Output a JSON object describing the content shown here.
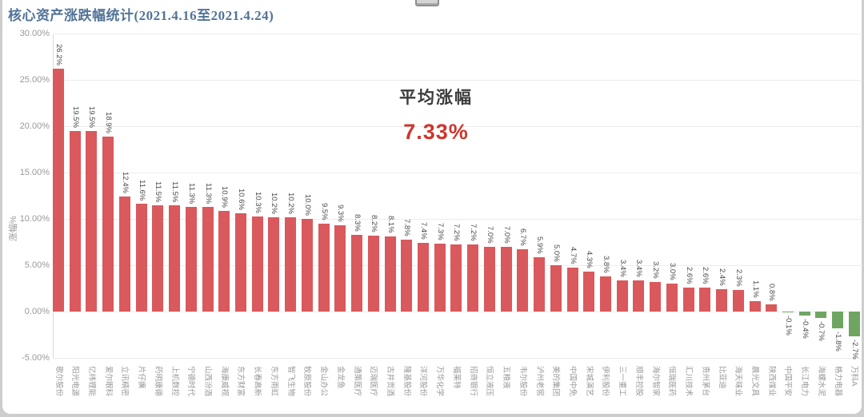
{
  "header": {
    "title": "核心资产涨跌幅统计(2021.4.16至2021.4.24)"
  },
  "toolbar": {
    "top_button_icon": "clipped-gray-button-icon"
  },
  "annotation": {
    "label": "平均涨幅",
    "value": "7.33%"
  },
  "colors": {
    "positive_bar": "#d9595c",
    "negative_bar": "#6ea661",
    "title": "#527398",
    "annotation_value": "#ce352c",
    "tick_text": "#999999"
  },
  "chart_data": {
    "type": "bar",
    "title": "核心资产涨跌幅统计(2021.4.16至2021.4.24)",
    "xlabel": "",
    "ylabel": "涨幅%",
    "ylim": [
      -5,
      30
    ],
    "grid": true,
    "legend": "none",
    "value_unit": "%",
    "annotation": {
      "label": "平均涨幅",
      "value": "7.33%"
    },
    "yticks": [
      {
        "label": "30.00%",
        "value": 30
      },
      {
        "label": "25.00%",
        "value": 25
      },
      {
        "label": "20.00%",
        "value": 20
      },
      {
        "label": "15.00%",
        "value": 15
      },
      {
        "label": "10.00%",
        "value": 10
      },
      {
        "label": "5.00%",
        "value": 5
      },
      {
        "label": "0.00%",
        "value": 0
      },
      {
        "label": "-5.00%",
        "value": -5
      }
    ],
    "categories": [
      "歌尔股份",
      "阳光电源",
      "亿纬锂能",
      "爱尔眼科",
      "立讯精密",
      "片仔癀",
      "药明康德",
      "上机数控",
      "宁德时代",
      "山西汾酒",
      "海康威视",
      "东方财富",
      "长春高新",
      "东方雨虹",
      "智飞生物",
      "牧原股份",
      "金山办公",
      "金龙鱼",
      "通策医疗",
      "迈瑞医疗",
      "古井贡酒",
      "隆基股份",
      "洋河股份",
      "万华化学",
      "福莱特",
      "招商银行",
      "恒立液压",
      "五粮液",
      "韦尔股份",
      "泸州老窖",
      "美的集团",
      "中国中免",
      "宋城演艺",
      "伊利股份",
      "三一重工",
      "顺丰控股",
      "海尔智家",
      "恒瑞医药",
      "汇川技术",
      "贵州茅台",
      "比亚迪",
      "海天味业",
      "晨光文具",
      "陕西煤业",
      "中国平安",
      "长江电力",
      "海螺水泥",
      "格力电器",
      "万科A"
    ],
    "values": [
      26.2,
      19.5,
      19.5,
      18.9,
      12.4,
      11.6,
      11.5,
      11.5,
      11.3,
      11.3,
      10.9,
      10.6,
      10.3,
      10.2,
      10.2,
      10.0,
      9.5,
      9.3,
      8.3,
      8.2,
      8.1,
      7.8,
      7.4,
      7.3,
      7.2,
      7.2,
      7.0,
      7.0,
      6.7,
      5.9,
      5.0,
      4.7,
      4.3,
      3.8,
      3.4,
      3.4,
      3.2,
      3.0,
      2.6,
      2.6,
      2.4,
      2.3,
      1.1,
      0.8,
      -0.1,
      -0.4,
      -0.7,
      -1.8,
      -2.7
    ]
  }
}
